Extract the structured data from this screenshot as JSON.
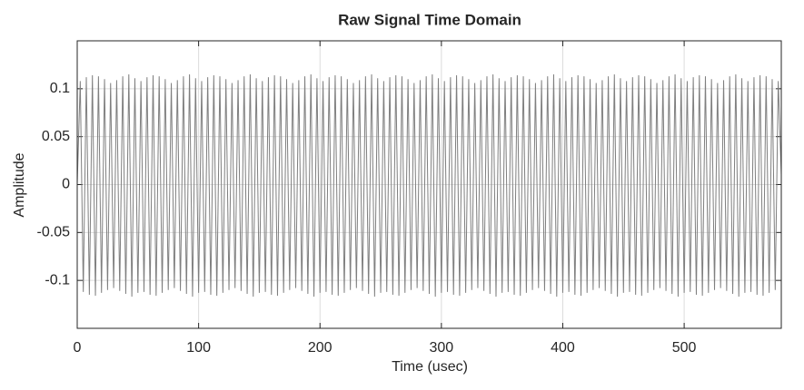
{
  "chart_data": {
    "type": "line",
    "title": "Raw Signal Time Domain",
    "x_label": "Time (usec)",
    "y_label": "Amplitude",
    "x": [
      0,
      2.5,
      5,
      7.5,
      10,
      12.5,
      15,
      17.5,
      20,
      22.5,
      25,
      27.5,
      30,
      32.5,
      35,
      37.5,
      40,
      42.5,
      45,
      47.5,
      50,
      52.5,
      55,
      57.5,
      60,
      62.5,
      65,
      67.5,
      70,
      72.5,
      75,
      77.5,
      80,
      82.5,
      85,
      87.5,
      90,
      92.5,
      95,
      97.5,
      100,
      102.5,
      105,
      107.5,
      110,
      112.5,
      115,
      117.5,
      120,
      122.5,
      125,
      127.5,
      130,
      132.5,
      135,
      137.5,
      140,
      142.5,
      145,
      147.5,
      150,
      152.5,
      155,
      157.5,
      160,
      162.5,
      165,
      167.5,
      170,
      172.5,
      175,
      177.5,
      180,
      182.5,
      185,
      187.5,
      190,
      192.5,
      195,
      197.5,
      200,
      202.5,
      205,
      207.5,
      210,
      212.5,
      215,
      217.5,
      220,
      222.5,
      225,
      227.5,
      230,
      232.5,
      235,
      237.5,
      240,
      242.5,
      245,
      247.5,
      250,
      252.5,
      255,
      257.5,
      260,
      262.5,
      265,
      267.5,
      270,
      272.5,
      275,
      277.5,
      280,
      282.5,
      285,
      287.5,
      290,
      292.5,
      295,
      297.5,
      300,
      302.5,
      305,
      307.5,
      310,
      312.5,
      315,
      317.5,
      320,
      322.5,
      325,
      327.5,
      330,
      332.5,
      335,
      337.5,
      340,
      342.5,
      345,
      347.5,
      350,
      352.5,
      355,
      357.5,
      360,
      362.5,
      365,
      367.5,
      370,
      372.5,
      375,
      377.5,
      380,
      382.5,
      385,
      387.5,
      390,
      392.5,
      395,
      397.5,
      400,
      402.5,
      405,
      407.5,
      410,
      412.5,
      415,
      417.5,
      420,
      422.5,
      425,
      427.5,
      430,
      432.5,
      435,
      437.5,
      440,
      442.5,
      445,
      447.5,
      450,
      452.5,
      455,
      457.5,
      460,
      462.5,
      465,
      467.5,
      470,
      472.5,
      475,
      477.5,
      480,
      482.5,
      485,
      487.5,
      490,
      492.5,
      495,
      497.5,
      500,
      502.5,
      505,
      507.5,
      510,
      512.5,
      515,
      517.5,
      520,
      522.5,
      525,
      527.5,
      530,
      532.5,
      535,
      537.5,
      540,
      542.5,
      545,
      547.5,
      550,
      552.5,
      555,
      557.5,
      560,
      562.5,
      565,
      567.5,
      570,
      572.5,
      575,
      577.5,
      580
    ],
    "values": [
      0,
      0.108,
      -0.112,
      0.112,
      -0.115,
      0.114,
      -0.116,
      0.113,
      -0.113,
      0.11,
      -0.11,
      0.106,
      -0.108,
      0.109,
      -0.111,
      0.113,
      -0.114,
      0.115,
      -0.117,
      0.111,
      -0.113,
      0.108,
      -0.112,
      0.112,
      -0.115,
      0.114,
      -0.116,
      0.113,
      -0.113,
      0.11,
      -0.11,
      0.106,
      -0.108,
      0.109,
      -0.111,
      0.113,
      -0.114,
      0.115,
      -0.117,
      0.111,
      -0.113,
      0.108,
      -0.112,
      0.112,
      -0.115,
      0.114,
      -0.116,
      0.113,
      -0.113,
      0.11,
      -0.11,
      0.106,
      -0.108,
      0.109,
      -0.111,
      0.113,
      -0.114,
      0.115,
      -0.117,
      0.111,
      -0.113,
      0.108,
      -0.112,
      0.112,
      -0.115,
      0.114,
      -0.116,
      0.113,
      -0.113,
      0.11,
      -0.11,
      0.106,
      -0.108,
      0.109,
      -0.111,
      0.113,
      -0.114,
      0.115,
      -0.117,
      0.111,
      -0.113,
      0.108,
      -0.112,
      0.112,
      -0.115,
      0.114,
      -0.116,
      0.113,
      -0.113,
      0.11,
      -0.11,
      0.106,
      -0.108,
      0.109,
      -0.111,
      0.113,
      -0.114,
      0.115,
      -0.117,
      0.111,
      -0.113,
      0.108,
      -0.112,
      0.112,
      -0.115,
      0.114,
      -0.116,
      0.113,
      -0.113,
      0.11,
      -0.11,
      0.106,
      -0.108,
      0.109,
      -0.111,
      0.113,
      -0.114,
      0.115,
      -0.117,
      0.111,
      -0.113,
      0.108,
      -0.112,
      0.112,
      -0.115,
      0.114,
      -0.116,
      0.113,
      -0.113,
      0.11,
      -0.11,
      0.106,
      -0.108,
      0.109,
      -0.111,
      0.113,
      -0.114,
      0.115,
      -0.117,
      0.111,
      -0.113,
      0.108,
      -0.112,
      0.112,
      -0.115,
      0.114,
      -0.116,
      0.113,
      -0.113,
      0.11,
      -0.11,
      0.106,
      -0.108,
      0.109,
      -0.111,
      0.113,
      -0.114,
      0.115,
      -0.117,
      0.111,
      -0.113,
      0.108,
      -0.112,
      0.112,
      -0.115,
      0.114,
      -0.116,
      0.113,
      -0.113,
      0.11,
      -0.11,
      0.106,
      -0.108,
      0.109,
      -0.111,
      0.113,
      -0.114,
      0.115,
      -0.117,
      0.111,
      -0.113,
      0.108,
      -0.112,
      0.112,
      -0.115,
      0.114,
      -0.116,
      0.113,
      -0.113,
      0.11,
      -0.11,
      0.106,
      -0.108,
      0.109,
      -0.111,
      0.113,
      -0.114,
      0.115,
      -0.117,
      0.111,
      -0.113,
      0.108,
      -0.112,
      0.112,
      -0.115,
      0.114,
      -0.116,
      0.113,
      -0.113,
      0.11,
      -0.11,
      0.106,
      -0.108,
      0.109,
      -0.111,
      0.113,
      -0.114,
      0.115,
      -0.117,
      0.111,
      -0.113,
      0.108,
      -0.112,
      0.112,
      -0.115,
      0.114,
      -0.116,
      0.113,
      -0.113,
      0.11,
      -0.11,
      0.108,
      0.01
    ],
    "color": "#7f7f7f",
    "xlim": [
      0,
      580
    ],
    "xticks": [
      0,
      100,
      200,
      300,
      400,
      500
    ],
    "ylim": [
      -0.15,
      0.15
    ],
    "yticks": [
      -0.1,
      -0.05,
      0,
      0.05,
      0.1
    ],
    "grid": true
  }
}
